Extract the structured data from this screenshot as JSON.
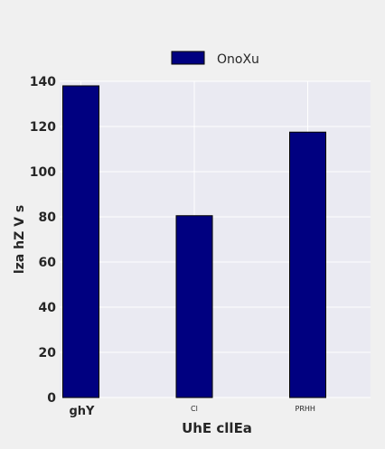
{
  "chart_data": {
    "type": "bar",
    "title": "",
    "xlabel": "UhE cllEa",
    "ylabel": "lza hZ V s",
    "categories": [
      "ghY",
      "Cl",
      "PRHH"
    ],
    "series": [
      {
        "name": "OnoXu",
        "values": [
          138,
          80.5,
          117.5
        ],
        "color": "#000080"
      }
    ],
    "ylim": [
      0,
      140
    ],
    "yticks": [
      0,
      20,
      40,
      60,
      80,
      100,
      120,
      140
    ],
    "grid": true,
    "legend_position": "top-center",
    "plot_background": "#eaeaf2",
    "page_background": "#f0f0f0"
  }
}
